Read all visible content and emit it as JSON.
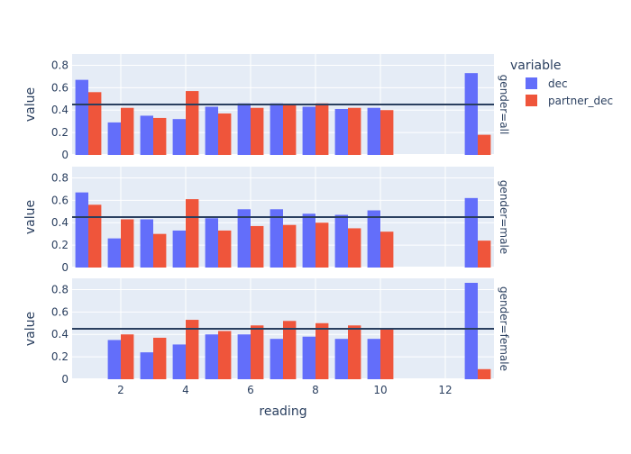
{
  "chart_data": {
    "type": "bar",
    "barmode": "group",
    "xlabel": "reading",
    "ylabel": "value",
    "xlim": [
      0.5,
      13.5
    ],
    "ylim": [
      0,
      0.9
    ],
    "x_ticks": [
      2,
      4,
      6,
      8,
      10,
      12
    ],
    "y_ticks": [
      0,
      0.2,
      0.4,
      0.6,
      0.8
    ],
    "legend": {
      "title": "variable",
      "placement": "right",
      "entries": [
        {
          "name": "dec",
          "color": "#636efa"
        },
        {
          "name": "partner_dec",
          "color": "#ef553b"
        }
      ]
    },
    "reference_line": {
      "y": 0.45,
      "color": "#2a3f5f"
    },
    "panels": [
      {
        "label": "gender=all",
        "x": [
          1,
          2,
          3,
          4,
          5,
          6,
          7,
          8,
          9,
          10,
          13
        ],
        "series": [
          {
            "name": "dec",
            "values": [
              0.67,
              0.29,
              0.35,
              0.32,
              0.43,
              0.46,
              0.46,
              0.43,
              0.41,
              0.42,
              0.73
            ]
          },
          {
            "name": "partner_dec",
            "values": [
              0.56,
              0.42,
              0.33,
              0.57,
              0.37,
              0.42,
              0.45,
              0.46,
              0.42,
              0.4,
              0.18
            ]
          }
        ]
      },
      {
        "label": "gender=male",
        "x": [
          1,
          2,
          3,
          4,
          5,
          6,
          7,
          8,
          9,
          10,
          13
        ],
        "series": [
          {
            "name": "dec",
            "values": [
              0.67,
              0.26,
              0.43,
              0.33,
              0.44,
              0.52,
              0.52,
              0.48,
              0.47,
              0.51,
              0.62
            ]
          },
          {
            "name": "partner_dec",
            "values": [
              0.56,
              0.43,
              0.3,
              0.61,
              0.33,
              0.37,
              0.38,
              0.4,
              0.35,
              0.32,
              0.24
            ]
          }
        ]
      },
      {
        "label": "gender=female",
        "x": [
          2,
          3,
          4,
          5,
          6,
          7,
          8,
          9,
          10,
          13
        ],
        "series": [
          {
            "name": "dec",
            "values": [
              0.35,
              0.24,
              0.31,
              0.4,
              0.4,
              0.36,
              0.38,
              0.36,
              0.36,
              0.86
            ]
          },
          {
            "name": "partner_dec",
            "values": [
              0.4,
              0.37,
              0.53,
              0.43,
              0.48,
              0.52,
              0.5,
              0.48,
              0.45,
              0.09
            ]
          }
        ]
      }
    ]
  }
}
